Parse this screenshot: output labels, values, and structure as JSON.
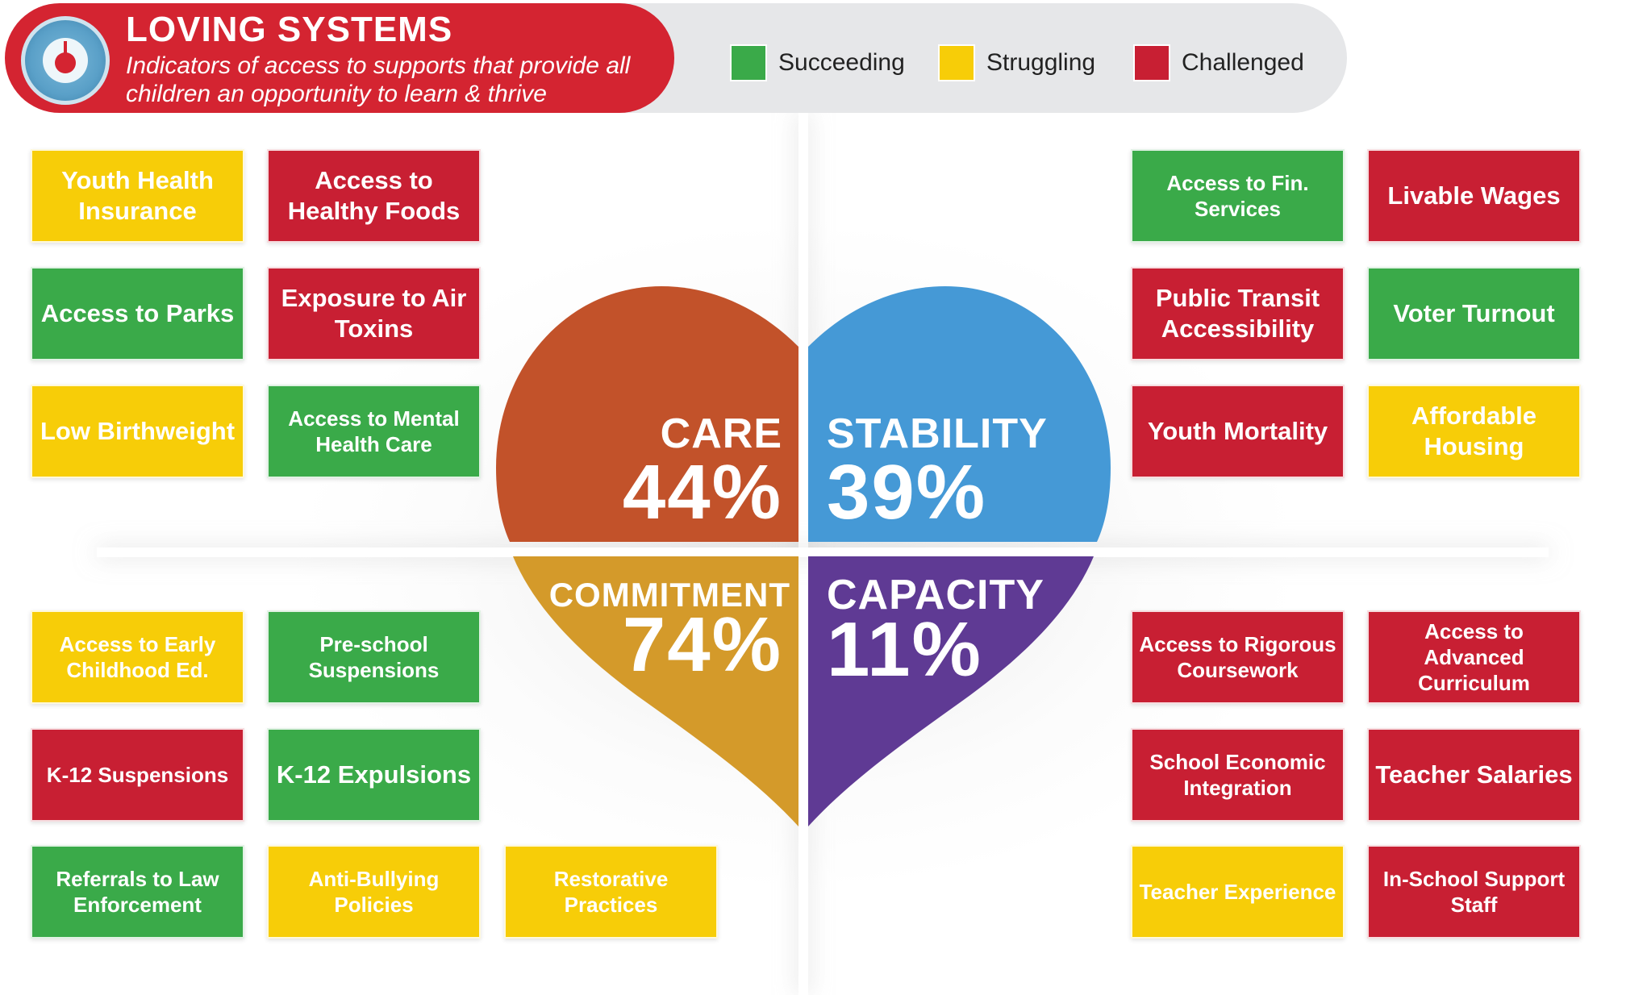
{
  "header": {
    "title": "LOVING SYSTEMS",
    "subtitle": "Indicators of access to supports that provide all children an opportunity to learn & thrive",
    "gauge_icon": "scale-gauge-icon"
  },
  "legend": [
    {
      "label": "Succeeding",
      "color": "#3aaa49"
    },
    {
      "label": "Struggling",
      "color": "#f7cd08"
    },
    {
      "label": "Challenged",
      "color": "#c81f33"
    }
  ],
  "quadrants": {
    "care": {
      "title": "CARE",
      "percent": "44%",
      "color": "#c2522a"
    },
    "stability": {
      "title": "STABILITY",
      "percent": "39%",
      "color": "#4599d6"
    },
    "commitment": {
      "title": "COMMITMENT",
      "percent": "74%",
      "color": "#d49a2a"
    },
    "capacity": {
      "title": "CAPACITY",
      "percent": "11%",
      "color": "#5f3a94"
    }
  },
  "indicators": {
    "care": [
      {
        "label": "Youth Health Insurance",
        "status": "Struggling"
      },
      {
        "label": "Access to Healthy Foods",
        "status": "Challenged"
      },
      {
        "label": "Access to Parks",
        "status": "Succeeding"
      },
      {
        "label": "Exposure to Air Toxins",
        "status": "Challenged"
      },
      {
        "label": "Low Birthweight",
        "status": "Struggling"
      },
      {
        "label": "Access to Mental Health Care",
        "status": "Succeeding"
      }
    ],
    "stability": [
      {
        "label": "Access to Fin. Services",
        "status": "Succeeding"
      },
      {
        "label": "Livable Wages",
        "status": "Challenged"
      },
      {
        "label": "Public Transit Accessibility",
        "status": "Challenged"
      },
      {
        "label": "Voter Turnout",
        "status": "Succeeding"
      },
      {
        "label": "Youth Mortality",
        "status": "Challenged"
      },
      {
        "label": "Affordable Housing",
        "status": "Struggling"
      }
    ],
    "commitment": [
      {
        "label": "Access to Early Childhood Ed.",
        "status": "Struggling"
      },
      {
        "label": "Pre-school Suspensions",
        "status": "Succeeding"
      },
      {
        "label": "K-12 Suspensions",
        "status": "Challenged"
      },
      {
        "label": "K-12 Expulsions",
        "status": "Succeeding"
      },
      {
        "label": "Referrals to Law Enforcement",
        "status": "Succeeding"
      },
      {
        "label": "Anti-Bullying Policies",
        "status": "Struggling"
      },
      {
        "label": "Restorative Practices",
        "status": "Struggling"
      }
    ],
    "capacity": [
      {
        "label": "Access to Rigorous Coursework",
        "status": "Challenged"
      },
      {
        "label": "Access to Advanced Curriculum",
        "status": "Challenged"
      },
      {
        "label": "School Economic Integration",
        "status": "Challenged"
      },
      {
        "label": "Teacher Salaries",
        "status": "Challenged"
      },
      {
        "label": "Teacher Experience",
        "status": "Struggling"
      },
      {
        "label": "In-School Support Staff",
        "status": "Challenged"
      }
    ]
  }
}
